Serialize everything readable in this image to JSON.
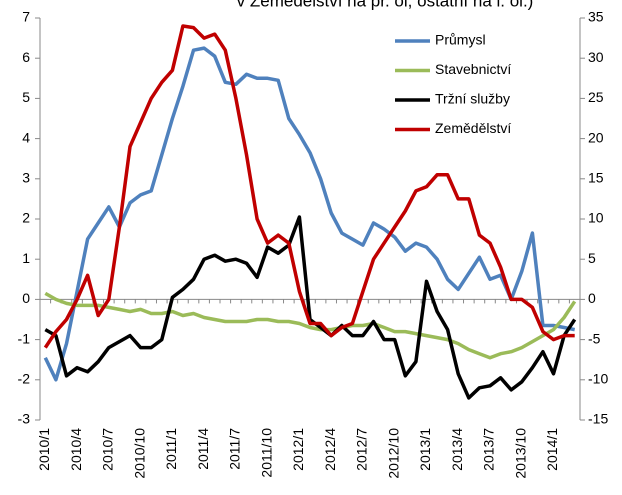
{
  "chart_data": {
    "type": "line",
    "title": "v Zemědělství na pr. ol, ostatní na l. ol.)",
    "categories": [
      "2010/1",
      null,
      null,
      "2010/4",
      null,
      null,
      "2010/7",
      null,
      null,
      "2010/10",
      null,
      null,
      "2011/1",
      null,
      null,
      "2011/4",
      null,
      null,
      "2011/7",
      null,
      null,
      "2011/10",
      null,
      null,
      "2012/1",
      null,
      null,
      "2012/4",
      null,
      null,
      "2012/7",
      null,
      null,
      "2012/10",
      null,
      null,
      "2013/1",
      null,
      null,
      "2013/4",
      null,
      null,
      "2013/7",
      null,
      null,
      "2013/10",
      null,
      null,
      "2014/1",
      null,
      null
    ],
    "series": [
      {
        "name": "Průmysl",
        "color": "#4f81bd",
        "values": [
          -1.45,
          -2.0,
          -1.1,
          0.2,
          1.5,
          1.9,
          2.3,
          1.8,
          2.4,
          2.6,
          2.7,
          3.6,
          4.5,
          5.3,
          6.2,
          6.25,
          6.05,
          5.4,
          5.35,
          5.6,
          5.5,
          5.5,
          5.45,
          4.5,
          4.1,
          3.65,
          3.0,
          2.15,
          1.65,
          1.5,
          1.35,
          1.9,
          1.75,
          1.55,
          1.2,
          1.4,
          1.3,
          1.0,
          0.5,
          0.25,
          0.65,
          1.05,
          0.5,
          0.6,
          0,
          0.7,
          1.65,
          -0.65,
          -0.65,
          -0.7,
          -0.75
        ]
      },
      {
        "name": "Stavebnictví",
        "color": "#9bbb59",
        "values": [
          0.15,
          0,
          -0.1,
          -0.15,
          -0.15,
          -0.15,
          -0.2,
          -0.25,
          -0.3,
          -0.25,
          -0.35,
          -0.35,
          -0.3,
          -0.4,
          -0.35,
          -0.45,
          -0.5,
          -0.55,
          -0.55,
          -0.55,
          -0.5,
          -0.5,
          -0.55,
          -0.55,
          -0.6,
          -0.7,
          -0.75,
          -0.75,
          -0.7,
          -0.65,
          -0.65,
          -0.6,
          -0.7,
          -0.8,
          -0.8,
          -0.85,
          -0.9,
          -0.95,
          -1.0,
          -1.1,
          -1.25,
          -1.35,
          -1.45,
          -1.35,
          -1.3,
          -1.2,
          -1.05,
          -0.9,
          -0.75,
          -0.45,
          -0.05
        ]
      },
      {
        "name": "Tržní služby",
        "color": "#000000",
        "values": [
          -0.75,
          -0.9,
          -1.9,
          -1.7,
          -1.8,
          -1.55,
          -1.2,
          -1.05,
          -0.9,
          -1.2,
          -1.2,
          -1.0,
          0.05,
          0.25,
          0.5,
          1.0,
          1.1,
          0.95,
          1.0,
          0.9,
          0.55,
          1.3,
          1.15,
          1.35,
          2.05,
          -0.5,
          -0.7,
          -0.9,
          -0.65,
          -0.9,
          -0.9,
          -0.55,
          -1.0,
          -1.0,
          -1.9,
          -1.55,
          0.45,
          -0.3,
          -0.75,
          -1.85,
          -2.45,
          -2.2,
          -2.15,
          -1.95,
          -2.25,
          -2.05,
          -1.7,
          -1.3,
          -1.85,
          -0.9,
          -0.5
        ]
      },
      {
        "name": "Zemědělství",
        "color": "#c00000",
        "axis": "y2",
        "values": [
          -6,
          -4,
          -2.5,
          0,
          3,
          -2,
          0,
          9,
          19,
          22,
          25,
          27,
          28.5,
          34,
          33.8,
          32.5,
          33,
          31,
          25,
          18,
          10,
          7,
          8,
          7,
          1,
          -3,
          -3,
          -4.5,
          -3.5,
          -3,
          1,
          5,
          7,
          9,
          11,
          13.5,
          14,
          15.5,
          15.5,
          12.5,
          12.5,
          8,
          7,
          4,
          0,
          0,
          -1,
          -4,
          -5,
          -4.5,
          -4.5
        ]
      }
    ],
    "ylim": [
      -3,
      7
    ],
    "yticks": [
      -3,
      -2,
      -1,
      0,
      1,
      2,
      3,
      4,
      5,
      6,
      7
    ],
    "y2lim": [
      -15,
      35
    ],
    "y2ticks": [
      -15,
      -10,
      -5,
      0,
      5,
      10,
      15,
      20,
      25,
      30,
      35
    ],
    "legend": "upper right"
  }
}
